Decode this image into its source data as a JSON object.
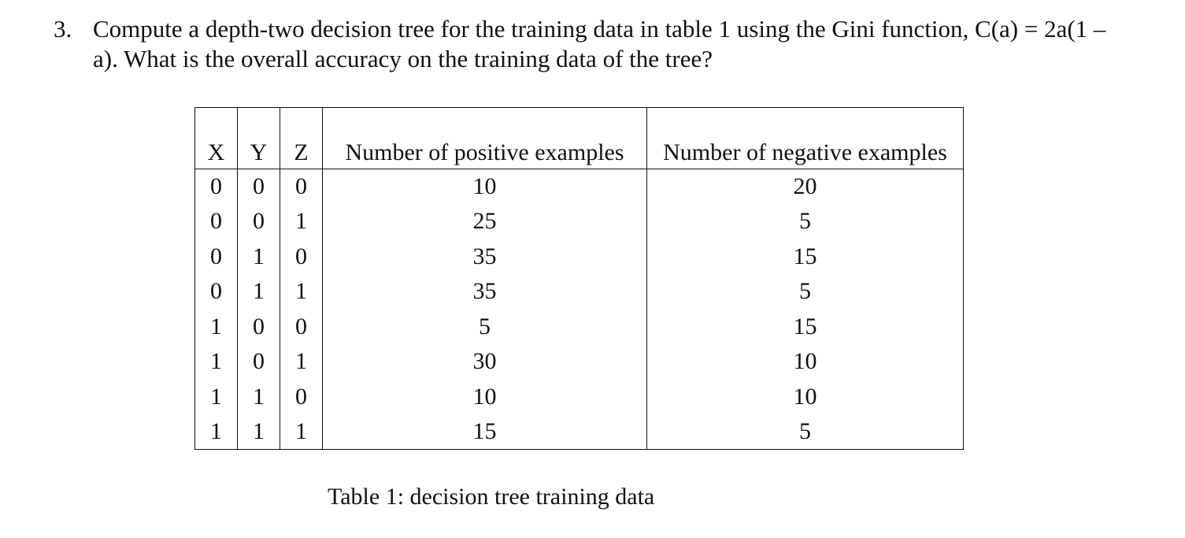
{
  "question": {
    "number": "3.",
    "text": "Compute a depth-two decision tree for the training data in table 1 using the Gini function, C(a) = 2a(1 – a). What is the overall accuracy on the training data of the tree?"
  },
  "table": {
    "headers": [
      "X",
      "Y",
      "Z",
      "Number of positive examples",
      "Number of negative examples"
    ],
    "rows": [
      [
        "0",
        "0",
        "0",
        "10",
        "20"
      ],
      [
        "0",
        "0",
        "1",
        "25",
        "5"
      ],
      [
        "0",
        "1",
        "0",
        "35",
        "15"
      ],
      [
        "0",
        "1",
        "1",
        "35",
        "5"
      ],
      [
        "1",
        "0",
        "0",
        "5",
        "15"
      ],
      [
        "1",
        "0",
        "1",
        "30",
        "10"
      ],
      [
        "1",
        "1",
        "0",
        "10",
        "10"
      ],
      [
        "1",
        "1",
        "1",
        "15",
        "5"
      ]
    ],
    "caption": "Table 1: decision tree training data"
  }
}
